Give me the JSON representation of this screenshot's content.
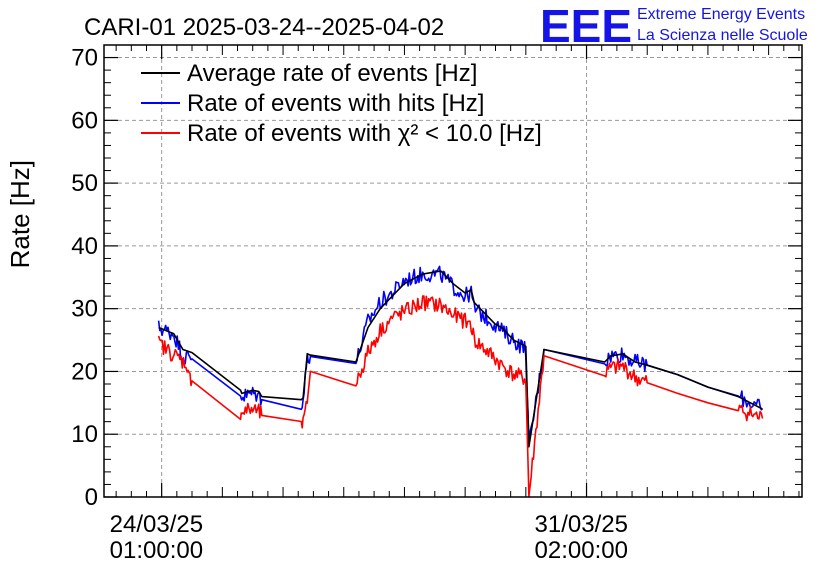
{
  "header": {
    "title": "CARI-01 2025-03-24--2025-04-02",
    "logo_text": "EEE",
    "logo_line1": "Extreme Energy Events",
    "logo_line2": "La Scienza nelle Scuole"
  },
  "chart_data": {
    "type": "line",
    "title": "CARI-01 2025-03-24--2025-04-02",
    "xlabel": "",
    "ylabel": "Rate [Hz]",
    "ylim": [
      0,
      72
    ],
    "yticks": [
      0,
      10,
      20,
      30,
      40,
      50,
      60,
      70
    ],
    "xlim": [
      -0.95,
      10.55
    ],
    "xticks": [
      {
        "value": 0,
        "label_date": "24/03/25",
        "label_time": "01:00:00"
      },
      {
        "value": 7,
        "label_date": "31/03/25",
        "label_time": "02:00:00"
      }
    ],
    "grid": true,
    "legend_position": "top-left",
    "series": [
      {
        "name": "Average rate of events [Hz]",
        "color": "#000000",
        "noise": 0.2,
        "x": [
          -0.05,
          0.2,
          0.35,
          0.5,
          1.3,
          1.32,
          1.5,
          1.6,
          1.65,
          2.3,
          2.33,
          2.4,
          2.45,
          3.2,
          3.4,
          3.6,
          3.8,
          4.0,
          4.3,
          4.6,
          4.8,
          5.0,
          5.1,
          5.15,
          5.5,
          5.6,
          5.8,
          6.0,
          6.05,
          6.3,
          7.3,
          7.4,
          7.6,
          7.8,
          8.0,
          8.5,
          9.0,
          9.5,
          9.9
        ],
        "y": [
          27,
          26,
          23.5,
          23,
          17,
          16.5,
          17,
          16.8,
          16,
          15.5,
          15.8,
          22.8,
          22.6,
          21.5,
          27,
          30,
          32,
          34,
          35.5,
          36,
          34,
          32.5,
          33,
          31,
          27.5,
          27,
          25,
          24,
          8,
          23.5,
          21.5,
          22.5,
          22.8,
          21.5,
          21,
          19.5,
          17.5,
          16,
          14
        ]
      },
      {
        "name": "Rate of events with hits [Hz]",
        "color": "#0000ff",
        "noise": 1.3,
        "x": [
          -0.05,
          0.2,
          0.35,
          0.5,
          1.3,
          1.32,
          1.5,
          1.6,
          1.65,
          2.3,
          2.33,
          2.4,
          2.45,
          3.2,
          3.4,
          3.6,
          3.8,
          4.0,
          4.3,
          4.6,
          4.8,
          5.0,
          5.1,
          5.15,
          5.5,
          5.6,
          5.8,
          6.0,
          6.05,
          6.3,
          7.3,
          7.4,
          7.6,
          7.8,
          8.0,
          8.5,
          9.0,
          9.5,
          9.9
        ],
        "y": [
          27,
          26,
          22.5,
          22,
          16.5,
          16,
          16.5,
          16.2,
          15.5,
          15,
          15.3,
          22.6,
          22.4,
          21.3,
          28,
          31,
          32.5,
          34.5,
          35.5,
          35.5,
          33.5,
          32,
          32.5,
          30,
          27.5,
          26.5,
          25,
          23.5,
          8,
          23.5,
          21.5,
          22.5,
          22.8,
          21.5,
          21,
          19.5,
          17.5,
          16,
          14
        ]
      },
      {
        "name": "Rate of events with χ² < 10.0 [Hz]",
        "color": "#ff0000",
        "noise": 1.3,
        "x": [
          -0.05,
          0.15,
          0.3,
          0.42,
          0.45,
          0.5,
          1.3,
          1.32,
          1.5,
          1.6,
          1.65,
          2.3,
          2.33,
          2.38,
          2.45,
          3.2,
          3.4,
          3.6,
          3.8,
          4.0,
          4.3,
          4.6,
          4.8,
          5.0,
          5.1,
          5.15,
          5.5,
          5.6,
          5.8,
          6.0,
          6.05,
          6.3,
          7.3,
          7.4,
          7.6,
          7.8,
          8.0,
          8.5,
          9.0,
          9.5,
          9.9
        ],
        "y": [
          24.5,
          23,
          22,
          21,
          19,
          18.5,
          13.5,
          13.5,
          14,
          13.5,
          13,
          12,
          11.5,
          14,
          20,
          18,
          23,
          26.5,
          28.5,
          29.5,
          31,
          30.5,
          29,
          28,
          27.5,
          25,
          22,
          21,
          19.5,
          18.8,
          0,
          22.5,
          19.5,
          20.5,
          20.8,
          19,
          18.2,
          16.5,
          15,
          14,
          12.5
        ]
      }
    ]
  }
}
